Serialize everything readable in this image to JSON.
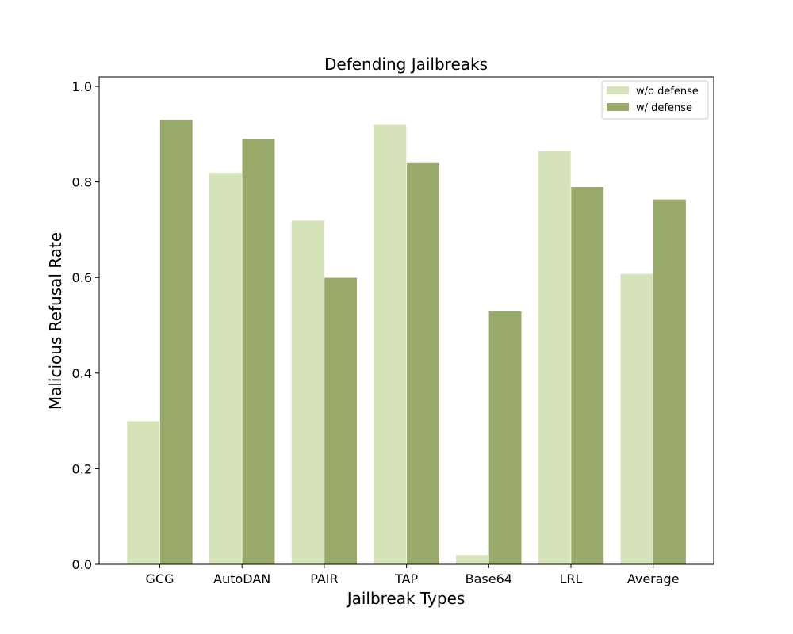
{
  "chart_data": {
    "type": "bar",
    "title": "Defending Jailbreaks",
    "xlabel": "Jailbreak Types",
    "ylabel": "Malicious Refusal Rate",
    "categories": [
      "GCG",
      "AutoDAN",
      "PAIR",
      "TAP",
      "Base64",
      "LRL",
      "Average"
    ],
    "series": [
      {
        "name": "w/o defense",
        "color": "#d6e3b8",
        "values": [
          0.3,
          0.82,
          0.72,
          0.92,
          0.02,
          0.865,
          0.608
        ]
      },
      {
        "name": "w/ defense",
        "color": "#98a96a",
        "values": [
          0.93,
          0.89,
          0.6,
          0.84,
          0.53,
          0.79,
          0.764
        ]
      }
    ],
    "ylim": [
      0,
      1.02
    ],
    "yticks": [
      0.0,
      0.2,
      0.4,
      0.6,
      0.8,
      1.0
    ],
    "ytick_labels": [
      "0.0",
      "0.2",
      "0.4",
      "0.6",
      "0.8",
      "1.0"
    ],
    "grid": false,
    "legend_position": "top-right"
  }
}
